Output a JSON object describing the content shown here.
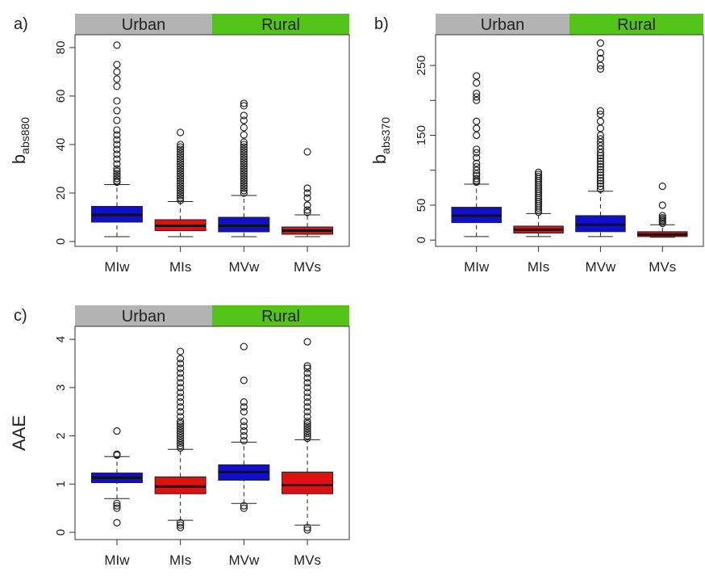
{
  "chart_data": [
    {
      "type": "box",
      "panel_label": "a)",
      "ylabel": "b",
      "ylabel_sub": "abs880",
      "strips": [
        {
          "label": "Urban",
          "color": "#b3b3b3"
        },
        {
          "label": "Rural",
          "color": "#55c41a"
        }
      ],
      "categories": [
        "MIw",
        "MIs",
        "MVw",
        "MVs"
      ],
      "ylim": [
        -2,
        85.3
      ],
      "yticks": [
        0,
        20,
        40,
        60,
        80
      ],
      "boxes": [
        {
          "color": "#1010c8",
          "whisker_low": 2,
          "q1": 8,
          "median": 11,
          "q3": 14.5,
          "whisker_high": 23.5,
          "outliers": [
            24.5,
            25,
            26,
            27,
            28,
            29,
            30,
            32,
            34,
            36,
            38,
            40,
            42,
            44,
            46,
            50,
            54,
            58,
            64,
            67,
            70,
            73,
            81
          ]
        },
        {
          "color": "#e01010",
          "whisker_low": 2,
          "q1": 4.5,
          "median": 6.5,
          "q3": 9,
          "whisker_high": 16.5,
          "outliers": [
            17,
            18,
            19,
            20,
            21,
            22,
            23,
            24,
            25,
            26,
            27,
            28,
            29,
            30,
            31,
            32,
            33,
            34,
            35,
            36,
            37,
            38,
            39,
            40,
            45
          ]
        },
        {
          "color": "#1010c8",
          "whisker_low": 2,
          "q1": 4,
          "median": 6.5,
          "q3": 10,
          "whisker_high": 19,
          "outliers": [
            20,
            21,
            22,
            23,
            24,
            25,
            26,
            27,
            28,
            29,
            30,
            31,
            32,
            33,
            34,
            35,
            36,
            37,
            38,
            39,
            40,
            41,
            44,
            47,
            50,
            52,
            56,
            57
          ]
        },
        {
          "color": "#e01010",
          "whisker_low": 2,
          "q1": 3,
          "median": 4.5,
          "q3": 6,
          "whisker_high": 11,
          "outliers": [
            12,
            13,
            15,
            18,
            20,
            22,
            37
          ]
        }
      ]
    },
    {
      "type": "box",
      "panel_label": "b)",
      "ylabel": "b",
      "ylabel_sub": "abs370",
      "strips": [
        {
          "label": "Urban",
          "color": "#b3b3b3"
        },
        {
          "label": "Rural",
          "color": "#55c41a"
        }
      ],
      "categories": [
        "MIw",
        "MIs",
        "MVw",
        "MVs"
      ],
      "ylim": [
        -9,
        294
      ],
      "yticks": [
        0,
        50,
        150,
        250
      ],
      "yminor_ticks": [
        100,
        200
      ],
      "boxes": [
        {
          "color": "#1010c8",
          "whisker_low": 5,
          "q1": 25,
          "median": 35,
          "q3": 47,
          "whisker_high": 80,
          "outliers": [
            83,
            85,
            88,
            92,
            95,
            100,
            105,
            110,
            118,
            125,
            130,
            150,
            160,
            170,
            200,
            205,
            210,
            225,
            235
          ]
        },
        {
          "color": "#e01010",
          "whisker_low": 5,
          "q1": 10,
          "median": 15,
          "q3": 20,
          "whisker_high": 38,
          "outliers": [
            40,
            43,
            46,
            49,
            52,
            55,
            58,
            61,
            64,
            67,
            70,
            73,
            76,
            79,
            82,
            85,
            88,
            91,
            94,
            97
          ]
        },
        {
          "color": "#1010c8",
          "whisker_low": 5,
          "q1": 12,
          "median": 22,
          "q3": 35,
          "whisker_high": 70,
          "outliers": [
            73,
            77,
            81,
            85,
            89,
            93,
            97,
            101,
            105,
            109,
            113,
            117,
            121,
            125,
            130,
            135,
            140,
            145,
            150,
            160,
            170,
            180,
            185,
            245,
            250,
            260,
            268,
            282
          ]
        },
        {
          "color": "#e01010",
          "whisker_low": 4,
          "q1": 5,
          "median": 8,
          "q3": 12,
          "whisker_high": 22,
          "outliers": [
            24,
            26,
            28,
            30,
            32,
            35,
            50,
            77
          ]
        }
      ]
    },
    {
      "type": "box",
      "panel_label": "c)",
      "ylabel": "AAE",
      "strips": [
        {
          "label": "Urban",
          "color": "#b3b3b3"
        },
        {
          "label": "Rural",
          "color": "#55c41a"
        }
      ],
      "categories": [
        "MIw",
        "MIs",
        "MVw",
        "MVs"
      ],
      "ylim": [
        -0.15,
        4.27
      ],
      "yticks": [
        0,
        1,
        2,
        3,
        4
      ],
      "boxes": [
        {
          "color": "#1010c8",
          "whisker_low": 0.7,
          "q1": 1.03,
          "median": 1.13,
          "q3": 1.23,
          "whisker_high": 1.57,
          "outliers": [
            0.2,
            0.5,
            0.55,
            0.6,
            1.6,
            1.62,
            2.1
          ]
        },
        {
          "color": "#e01010",
          "whisker_low": 0.25,
          "q1": 0.8,
          "median": 0.95,
          "q3": 1.15,
          "whisker_high": 1.72,
          "outliers": [
            0.1,
            0.15,
            0.2,
            1.75,
            1.8,
            1.85,
            1.9,
            1.95,
            2.0,
            2.05,
            2.1,
            2.15,
            2.2,
            2.25,
            2.3,
            2.4,
            2.5,
            2.6,
            2.7,
            2.8,
            2.9,
            3.0,
            3.1,
            3.2,
            3.3,
            3.4,
            3.5,
            3.6,
            3.75
          ]
        },
        {
          "color": "#1010c8",
          "whisker_low": 0.6,
          "q1": 1.08,
          "median": 1.25,
          "q3": 1.4,
          "whisker_high": 1.87,
          "outliers": [
            0.5,
            0.55,
            1.9,
            2.0,
            2.1,
            2.2,
            2.3,
            2.5,
            2.6,
            2.7,
            3.15,
            3.85
          ]
        },
        {
          "color": "#e01010",
          "whisker_low": 0.15,
          "q1": 0.8,
          "median": 0.98,
          "q3": 1.25,
          "whisker_high": 1.92,
          "outliers": [
            0.05,
            0.1,
            1.95,
            2.0,
            2.05,
            2.1,
            2.15,
            2.2,
            2.25,
            2.3,
            2.4,
            2.5,
            2.6,
            2.7,
            2.8,
            2.9,
            3.0,
            3.1,
            3.2,
            3.3,
            3.4,
            3.45,
            3.95
          ]
        }
      ]
    }
  ]
}
